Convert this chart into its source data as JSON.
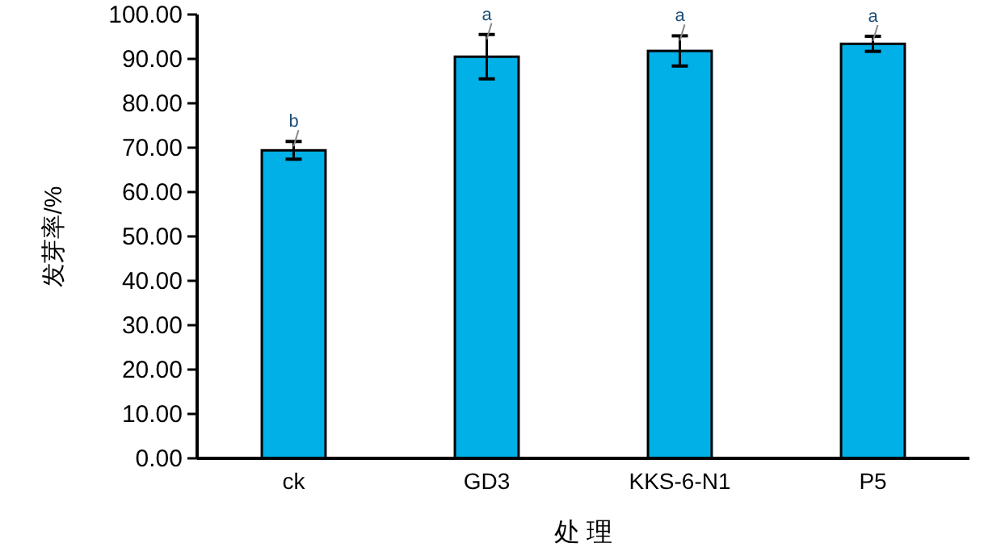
{
  "chart_data": {
    "type": "bar",
    "xlabel": "处 理",
    "ylabel": "发芽率/%",
    "categories": [
      "ck",
      "GD3",
      "KKS-6-N1",
      "P5"
    ],
    "series": [
      {
        "color": "#00b0e6",
        "values": [
          69.4,
          90.5,
          91.8,
          93.4
        ],
        "errors": [
          2,
          5,
          3.4,
          1.7
        ]
      }
    ],
    "ylim": [
      0,
      100
    ],
    "yticks": [
      {
        "value": 0,
        "label": "0.00"
      },
      {
        "value": 10,
        "label": "10.00"
      },
      {
        "value": 20,
        "label": "20.00"
      },
      {
        "value": 30,
        "label": "30.00"
      },
      {
        "value": 40,
        "label": "40.00"
      },
      {
        "value": 50,
        "label": "50.00"
      },
      {
        "value": 60,
        "label": "60.00"
      },
      {
        "value": 70,
        "label": "70.00"
      },
      {
        "value": 80,
        "label": "80.00"
      },
      {
        "value": 90,
        "label": "90.00"
      },
      {
        "value": 100,
        "label": "100.00"
      }
    ],
    "annotations": [
      {
        "text": "b",
        "x": "ck",
        "y": 71.4
      },
      {
        "text": "a",
        "x": "GD3",
        "y": 95.5
      },
      {
        "text": "a",
        "x": "KKS-6-N1",
        "y": 95.2
      },
      {
        "text": "a",
        "x": "P5",
        "y": 95.1
      }
    ],
    "grid": false
  }
}
